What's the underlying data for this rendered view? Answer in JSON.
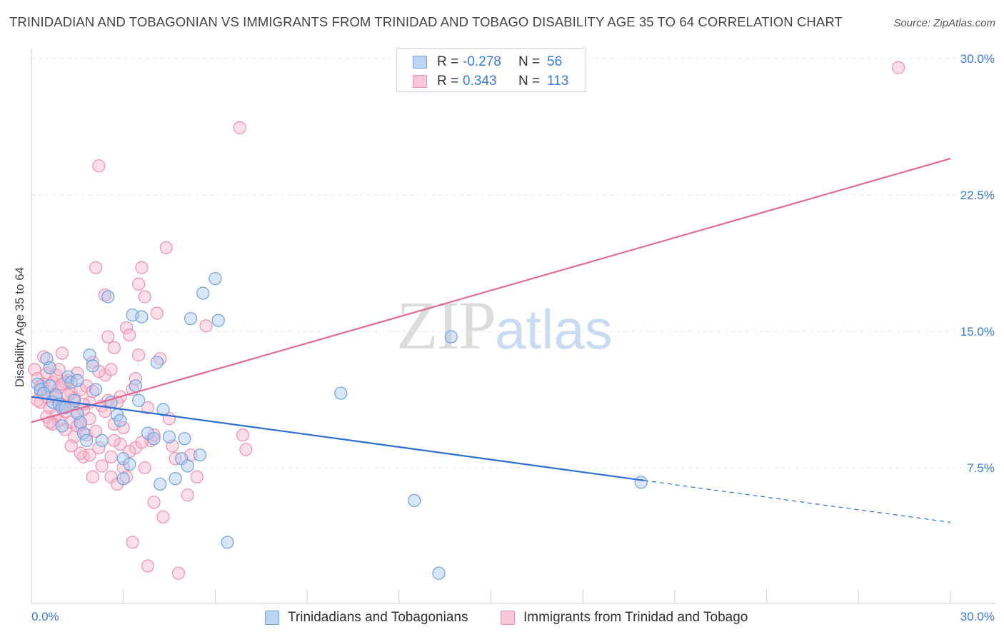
{
  "title": "TRINIDADIAN AND TOBAGONIAN VS IMMIGRANTS FROM TRINIDAD AND TOBAGO DISABILITY AGE 35 TO 64 CORRELATION CHART",
  "source": "Source: ZipAtlas.com",
  "watermark": {
    "zip": "ZIP",
    "atlas": "atlas"
  },
  "legend": {
    "r_key": "R =",
    "n_key": "N =",
    "series1": {
      "r": "-0.278",
      "n": "56"
    },
    "series2": {
      "r": "0.343",
      "n": "113"
    }
  },
  "bottom_legend": {
    "series1": "Trinidadians and Tobagonians",
    "series2": "Immigrants from Trinidad and Tobago"
  },
  "colors": {
    "blue_fill": "#a8c8f0",
    "blue_stroke": "#6fa0e0",
    "blue_line": "#2d6fd0",
    "pink_fill": "#f7b8cc",
    "pink_stroke": "#ec90ad",
    "pink_line": "#e06a93",
    "tick_text": "#3a7bd5",
    "grid": "#e4e4e4"
  },
  "chart_data": {
    "type": "scatter",
    "title": "TRINIDADIAN AND TOBAGONIAN VS IMMIGRANTS FROM TRINIDAD AND TOBAGO DISABILITY AGE 35 TO 64 CORRELATION CHART",
    "xlabel": "",
    "ylabel": "Disability Age 35 to 64",
    "xlim": [
      0,
      30
    ],
    "ylim": [
      0,
      31.5
    ],
    "x_tick_labels": [
      "0.0%",
      "30.0%"
    ],
    "y_ticks": [
      7.5,
      15.0,
      22.5,
      30.0
    ],
    "y_tick_labels": [
      "7.5%",
      "15.0%",
      "22.5%",
      "30.0%"
    ],
    "legend_position": "top-center",
    "series": [
      {
        "name": "Trinidadians and Tobagonians",
        "R": -0.278,
        "N": 56,
        "trend": {
          "x0": 0.0,
          "y0": 11.4,
          "x1": 20.0,
          "y1": 6.8,
          "dash_to_x": 30.0,
          "dash_to_y": 4.5
        },
        "points": [
          [
            0.5,
            13.5
          ],
          [
            0.2,
            12.1
          ],
          [
            0.3,
            11.8
          ],
          [
            0.6,
            12.0
          ],
          [
            0.8,
            11.5
          ],
          [
            0.7,
            11.1
          ],
          [
            0.9,
            11.0
          ],
          [
            1.0,
            10.8
          ],
          [
            1.1,
            10.8
          ],
          [
            1.2,
            12.5
          ],
          [
            1.3,
            12.2
          ],
          [
            1.4,
            11.2
          ],
          [
            1.5,
            10.5
          ],
          [
            1.6,
            10.0
          ],
          [
            1.7,
            9.4
          ],
          [
            1.8,
            9.0
          ],
          [
            1.9,
            13.7
          ],
          [
            2.0,
            13.1
          ],
          [
            2.1,
            11.8
          ],
          [
            2.5,
            16.9
          ],
          [
            2.6,
            11.1
          ],
          [
            2.8,
            10.4
          ],
          [
            2.9,
            10.1
          ],
          [
            3.0,
            8.0
          ],
          [
            3.2,
            7.7
          ],
          [
            3.3,
            15.9
          ],
          [
            3.4,
            12.0
          ],
          [
            3.5,
            11.2
          ],
          [
            3.6,
            15.8
          ],
          [
            3.8,
            9.4
          ],
          [
            4.0,
            9.1
          ],
          [
            4.1,
            13.3
          ],
          [
            4.2,
            6.6
          ],
          [
            4.3,
            10.7
          ],
          [
            4.5,
            9.2
          ],
          [
            4.7,
            6.9
          ],
          [
            4.9,
            8.0
          ],
          [
            5.0,
            9.1
          ],
          [
            5.1,
            7.6
          ],
          [
            5.2,
            15.7
          ],
          [
            5.5,
            8.2
          ],
          [
            5.6,
            17.1
          ],
          [
            6.0,
            17.9
          ],
          [
            6.1,
            15.6
          ],
          [
            6.4,
            3.4
          ],
          [
            10.1,
            11.6
          ],
          [
            12.5,
            5.7
          ],
          [
            13.3,
            1.7
          ],
          [
            13.7,
            14.7
          ],
          [
            19.9,
            6.7
          ],
          [
            0.4,
            11.6
          ],
          [
            1.0,
            9.8
          ],
          [
            2.3,
            9.0
          ],
          [
            3.0,
            6.9
          ],
          [
            0.6,
            13.0
          ],
          [
            1.5,
            12.3
          ]
        ]
      },
      {
        "name": "Immigrants from Trinidad and Tobago",
        "R": 0.343,
        "N": 113,
        "trend": {
          "x0": 0.0,
          "y0": 10.0,
          "x1": 30.0,
          "y1": 24.5
        },
        "points": [
          [
            0.1,
            12.9
          ],
          [
            0.2,
            12.4
          ],
          [
            0.3,
            11.7
          ],
          [
            0.3,
            11.1
          ],
          [
            0.4,
            12.1
          ],
          [
            0.5,
            11.4
          ],
          [
            0.5,
            12.7
          ],
          [
            0.6,
            10.8
          ],
          [
            0.6,
            13.0
          ],
          [
            0.7,
            12.2
          ],
          [
            0.7,
            11.5
          ],
          [
            0.8,
            10.4
          ],
          [
            0.8,
            12.6
          ],
          [
            0.9,
            11.9
          ],
          [
            0.9,
            10.1
          ],
          [
            1.0,
            13.8
          ],
          [
            1.0,
            11.0
          ],
          [
            1.1,
            10.6
          ],
          [
            1.1,
            9.6
          ],
          [
            1.2,
            12.3
          ],
          [
            1.2,
            10.9
          ],
          [
            1.3,
            10.0
          ],
          [
            1.3,
            11.6
          ],
          [
            1.4,
            11.3
          ],
          [
            1.4,
            9.2
          ],
          [
            1.5,
            12.7
          ],
          [
            1.5,
            10.5
          ],
          [
            1.6,
            11.8
          ],
          [
            1.6,
            9.9
          ],
          [
            1.7,
            8.1
          ],
          [
            1.7,
            10.7
          ],
          [
            1.8,
            12.0
          ],
          [
            1.8,
            9.3
          ],
          [
            1.9,
            11.1
          ],
          [
            1.9,
            8.2
          ],
          [
            2.0,
            7.0
          ],
          [
            2.0,
            13.3
          ],
          [
            2.1,
            9.5
          ],
          [
            2.1,
            18.5
          ],
          [
            2.2,
            8.6
          ],
          [
            2.3,
            10.9
          ],
          [
            2.3,
            7.6
          ],
          [
            2.4,
            17.0
          ],
          [
            2.4,
            12.6
          ],
          [
            2.5,
            14.7
          ],
          [
            2.5,
            11.2
          ],
          [
            2.6,
            8.1
          ],
          [
            2.6,
            7.0
          ],
          [
            2.7,
            14.1
          ],
          [
            2.7,
            9.9
          ],
          [
            2.8,
            6.6
          ],
          [
            2.9,
            8.8
          ],
          [
            2.9,
            11.4
          ],
          [
            3.0,
            7.5
          ],
          [
            3.1,
            15.2
          ],
          [
            3.1,
            7.0
          ],
          [
            3.2,
            14.8
          ],
          [
            3.3,
            11.8
          ],
          [
            3.3,
            3.4
          ],
          [
            3.4,
            8.6
          ],
          [
            3.5,
            17.6
          ],
          [
            3.5,
            13.7
          ],
          [
            3.6,
            18.5
          ],
          [
            3.7,
            16.9
          ],
          [
            3.7,
            7.5
          ],
          [
            3.8,
            2.1
          ],
          [
            3.9,
            9.0
          ],
          [
            4.0,
            5.6
          ],
          [
            4.1,
            16.0
          ],
          [
            4.2,
            13.5
          ],
          [
            4.3,
            4.8
          ],
          [
            4.4,
            19.6
          ],
          [
            4.5,
            10.2
          ],
          [
            4.7,
            8.0
          ],
          [
            4.8,
            1.7
          ],
          [
            5.1,
            6.0
          ],
          [
            5.2,
            8.2
          ],
          [
            5.4,
            7.0
          ],
          [
            5.7,
            15.3
          ],
          [
            6.8,
            26.2
          ],
          [
            6.9,
            9.3
          ],
          [
            7.0,
            8.5
          ],
          [
            2.2,
            24.1
          ],
          [
            28.3,
            29.5
          ],
          [
            0.4,
            13.6
          ],
          [
            0.9,
            12.9
          ],
          [
            1.6,
            8.3
          ],
          [
            2.8,
            11.1
          ],
          [
            3.6,
            8.9
          ],
          [
            0.2,
            11.2
          ],
          [
            0.5,
            10.3
          ],
          [
            1.1,
            12.2
          ],
          [
            2.0,
            11.7
          ],
          [
            2.7,
            9.0
          ],
          [
            3.4,
            12.4
          ],
          [
            4.0,
            9.3
          ],
          [
            1.3,
            8.7
          ],
          [
            0.7,
            9.9
          ],
          [
            1.9,
            10.2
          ],
          [
            2.4,
            10.6
          ],
          [
            3.0,
            9.7
          ],
          [
            3.8,
            10.8
          ],
          [
            0.3,
            12.0
          ],
          [
            1.5,
            9.8
          ],
          [
            2.2,
            12.8
          ],
          [
            0.8,
            11.4
          ],
          [
            1.2,
            11.5
          ],
          [
            2.6,
            12.9
          ],
          [
            0.6,
            10.0
          ],
          [
            1.0,
            12.1
          ],
          [
            1.7,
            11.0
          ],
          [
            3.2,
            8.4
          ],
          [
            4.6,
            8.7
          ]
        ]
      }
    ]
  }
}
